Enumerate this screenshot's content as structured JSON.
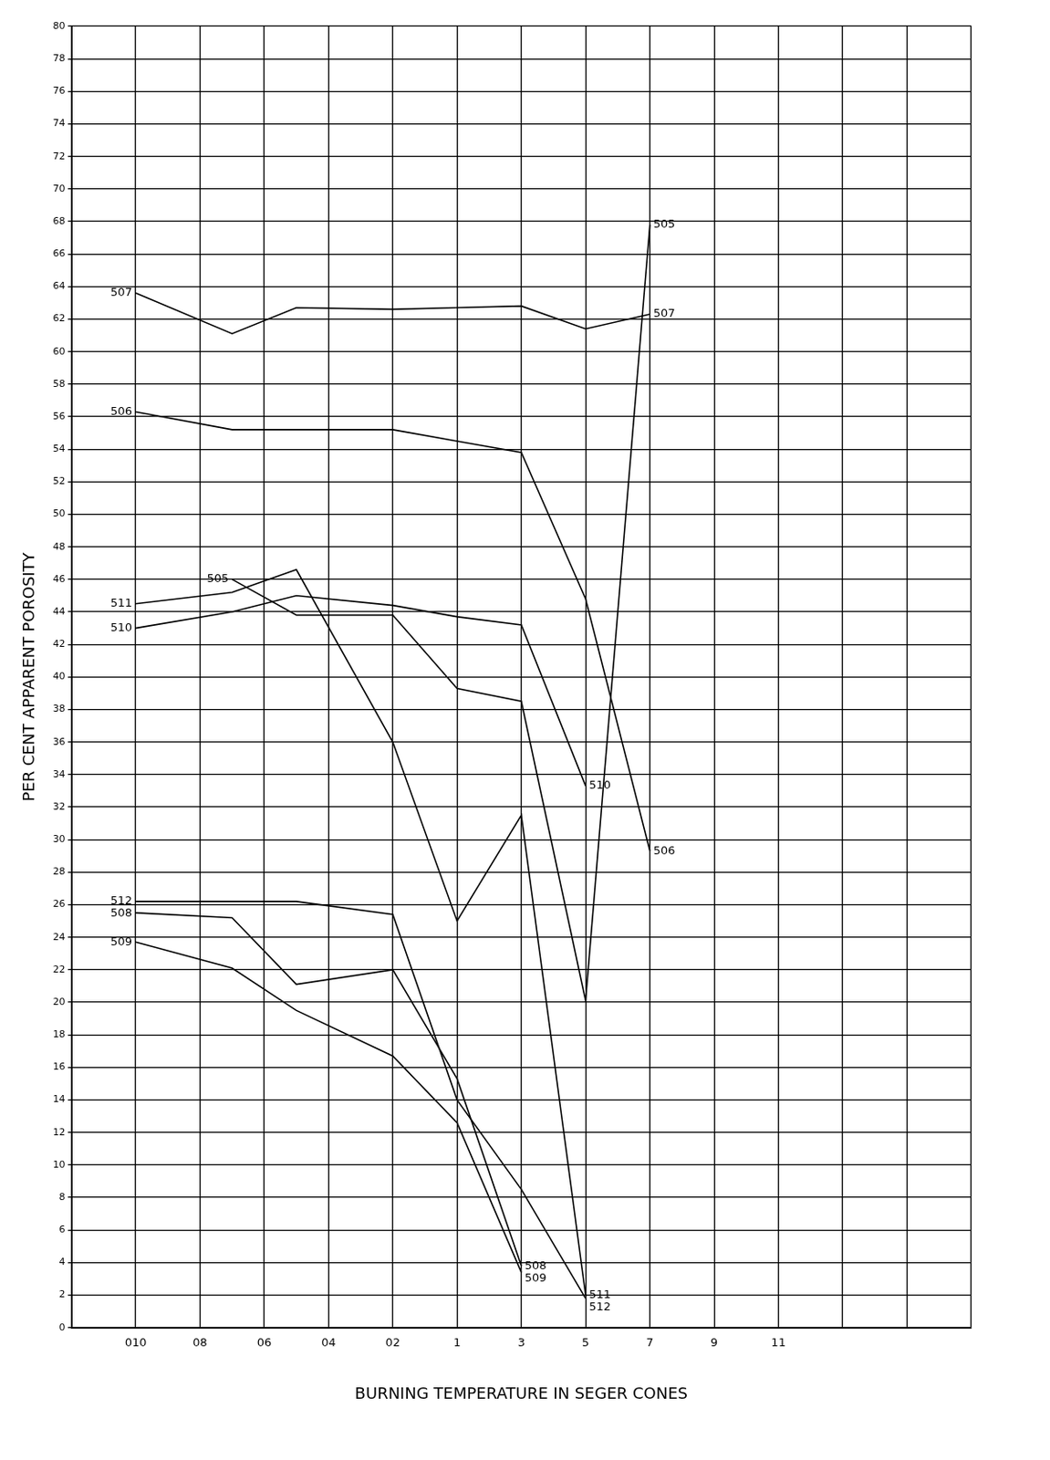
{
  "chart_data": {
    "type": "line",
    "x_label": "BURNING TEMPERATURE IN SEGER CONES",
    "y_label": "PER CENT APPARENT POROSITY",
    "categories": [
      null,
      null,
      "010",
      null,
      "08",
      null,
      "06",
      null,
      "04",
      null,
      "02",
      null,
      "1",
      null,
      "3",
      null,
      "5",
      null,
      "7",
      null,
      "9",
      null,
      "11",
      null,
      null,
      null,
      null,
      null,
      null
    ],
    "ylim": [
      0,
      80
    ],
    "yticks": [
      0,
      2,
      4,
      6,
      8,
      10,
      12,
      14,
      16,
      18,
      20,
      22,
      24,
      26,
      28,
      30,
      32,
      34,
      36,
      38,
      40,
      42,
      44,
      46,
      48,
      50,
      52,
      54,
      56,
      58,
      60,
      62,
      64,
      66,
      68,
      70,
      72,
      74,
      76,
      78,
      80
    ],
    "grid": true,
    "series": [
      {
        "name": "507",
        "color": "#000000",
        "values": [
          null,
          null,
          63.6,
          null,
          null,
          61.1,
          null,
          62.7,
          null,
          null,
          62.6,
          null,
          62.7,
          null,
          62.8,
          null,
          61.4,
          null,
          62.3,
          null,
          null,
          null,
          null,
          null,
          null,
          null,
          null,
          null,
          null
        ]
      },
      {
        "name": "506",
        "color": "#000000",
        "values": [
          null,
          null,
          56.3,
          null,
          null,
          55.2,
          null,
          55.2,
          null,
          null,
          55.2,
          null,
          54.5,
          null,
          53.8,
          null,
          44.8,
          null,
          29.3,
          null,
          null,
          null,
          null,
          null,
          null,
          null,
          null,
          null,
          null
        ]
      },
      {
        "name": "505",
        "color": "#000000",
        "values": [
          null,
          null,
          null,
          null,
          null,
          46.0,
          null,
          43.8,
          null,
          null,
          43.8,
          null,
          39.3,
          null,
          38.5,
          null,
          20.1,
          null,
          67.8,
          null,
          null,
          null,
          null,
          null,
          null,
          null,
          null,
          null,
          null
        ]
      },
      {
        "name": "511",
        "color": "#000000",
        "values": [
          null,
          null,
          44.5,
          null,
          null,
          45.2,
          null,
          46.6,
          null,
          null,
          36.0,
          null,
          25.0,
          null,
          31.5,
          null,
          2.0,
          null,
          null,
          null,
          null,
          null,
          null,
          null,
          null,
          null,
          null,
          null,
          null
        ]
      },
      {
        "name": "510",
        "color": "#000000",
        "values": [
          null,
          null,
          43.0,
          null,
          null,
          44.0,
          null,
          45.0,
          null,
          null,
          44.4,
          null,
          43.7,
          null,
          43.2,
          null,
          33.3,
          null,
          null,
          null,
          null,
          null,
          null,
          null,
          null,
          null,
          null,
          null,
          null
        ]
      },
      {
        "name": "512",
        "color": "#000000",
        "values": [
          null,
          null,
          26.2,
          null,
          null,
          26.2,
          null,
          26.2,
          null,
          null,
          25.4,
          null,
          14.0,
          null,
          8.5,
          null,
          1.8,
          null,
          null,
          null,
          null,
          null,
          null,
          null,
          null,
          null,
          null,
          null,
          null
        ]
      },
      {
        "name": "508",
        "color": "#000000",
        "values": [
          null,
          null,
          25.5,
          null,
          null,
          25.2,
          null,
          21.1,
          null,
          null,
          22.0,
          null,
          15.3,
          null,
          3.8,
          null,
          null,
          null,
          null,
          null,
          null,
          null,
          null,
          null,
          null,
          null,
          null,
          null,
          null
        ]
      },
      {
        "name": "509",
        "color": "#000000",
        "values": [
          null,
          null,
          23.7,
          null,
          null,
          22.1,
          null,
          19.5,
          null,
          null,
          16.7,
          null,
          12.6,
          null,
          3.4,
          null,
          null,
          null,
          null,
          null,
          null,
          null,
          null,
          null,
          null,
          null,
          null,
          null,
          null
        ]
      }
    ]
  }
}
